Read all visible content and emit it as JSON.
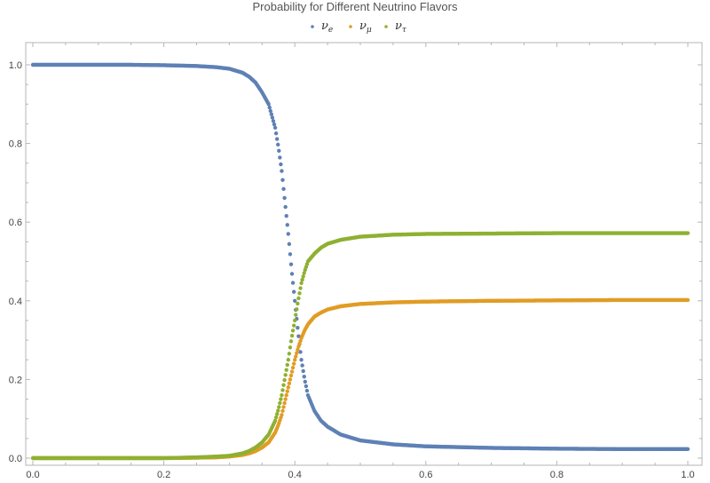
{
  "chart_data": {
    "type": "scatter",
    "title": "Probability for Different Neutrino Flavors",
    "xlabel": "",
    "ylabel": "",
    "xlim": [
      0.0,
      1.0
    ],
    "ylim": [
      0.0,
      1.0
    ],
    "x_ticks": [
      0.0,
      0.2,
      0.4,
      0.6,
      0.8,
      1.0
    ],
    "y_ticks": [
      0.0,
      0.2,
      0.4,
      0.6,
      0.8,
      1.0
    ],
    "x_tick_labels": [
      "0.0",
      "0.2",
      "0.4",
      "0.6",
      "0.8",
      "1.0"
    ],
    "y_tick_labels": [
      "0.0",
      "0.2",
      "0.4",
      "0.6",
      "0.8",
      "1.0"
    ],
    "legend_position": "top-center",
    "grid": false,
    "series": [
      {
        "legend_base": "ν",
        "legend_sub": "e",
        "color": "#5E81B5",
        "x": [
          0.0,
          0.05,
          0.1,
          0.15,
          0.2,
          0.25,
          0.28,
          0.3,
          0.32,
          0.33,
          0.34,
          0.35,
          0.36,
          0.37,
          0.375,
          0.38,
          0.385,
          0.39,
          0.395,
          0.4,
          0.405,
          0.41,
          0.415,
          0.42,
          0.43,
          0.44,
          0.45,
          0.47,
          0.5,
          0.55,
          0.6,
          0.7,
          0.8,
          0.9,
          1.0
        ],
        "values": [
          1.0,
          1.0,
          1.0,
          1.0,
          0.999,
          0.997,
          0.994,
          0.99,
          0.98,
          0.97,
          0.955,
          0.93,
          0.9,
          0.84,
          0.79,
          0.73,
          0.65,
          0.57,
          0.48,
          0.4,
          0.32,
          0.25,
          0.2,
          0.16,
          0.12,
          0.095,
          0.08,
          0.06,
          0.045,
          0.035,
          0.03,
          0.026,
          0.024,
          0.023,
          0.023
        ]
      },
      {
        "legend_base": "ν",
        "legend_sub": "μ",
        "color": "#E19C24",
        "x": [
          0.0,
          0.05,
          0.1,
          0.15,
          0.2,
          0.25,
          0.28,
          0.3,
          0.32,
          0.33,
          0.34,
          0.35,
          0.36,
          0.37,
          0.375,
          0.38,
          0.385,
          0.39,
          0.395,
          0.4,
          0.405,
          0.41,
          0.415,
          0.42,
          0.43,
          0.44,
          0.45,
          0.47,
          0.5,
          0.55,
          0.6,
          0.7,
          0.8,
          0.9,
          1.0
        ],
        "values": [
          0.0,
          0.0,
          0.0,
          0.0,
          0.0,
          0.001,
          0.002,
          0.004,
          0.008,
          0.012,
          0.018,
          0.027,
          0.04,
          0.065,
          0.085,
          0.11,
          0.145,
          0.18,
          0.215,
          0.25,
          0.28,
          0.305,
          0.325,
          0.34,
          0.36,
          0.37,
          0.378,
          0.386,
          0.392,
          0.396,
          0.398,
          0.4,
          0.401,
          0.402,
          0.402
        ]
      },
      {
        "legend_base": "ν",
        "legend_sub": "τ",
        "color": "#8FB032",
        "x": [
          0.0,
          0.05,
          0.1,
          0.15,
          0.2,
          0.25,
          0.28,
          0.3,
          0.32,
          0.33,
          0.34,
          0.35,
          0.36,
          0.37,
          0.375,
          0.38,
          0.385,
          0.39,
          0.395,
          0.4,
          0.405,
          0.41,
          0.415,
          0.42,
          0.43,
          0.44,
          0.45,
          0.47,
          0.5,
          0.55,
          0.6,
          0.7,
          0.8,
          0.9,
          1.0
        ],
        "values": [
          0.0,
          0.0,
          0.0,
          0.0,
          0.0,
          0.002,
          0.004,
          0.006,
          0.012,
          0.018,
          0.027,
          0.04,
          0.06,
          0.095,
          0.125,
          0.16,
          0.205,
          0.25,
          0.305,
          0.35,
          0.4,
          0.445,
          0.475,
          0.5,
          0.52,
          0.535,
          0.545,
          0.555,
          0.563,
          0.568,
          0.57,
          0.571,
          0.572,
          0.572,
          0.572
        ]
      }
    ]
  }
}
